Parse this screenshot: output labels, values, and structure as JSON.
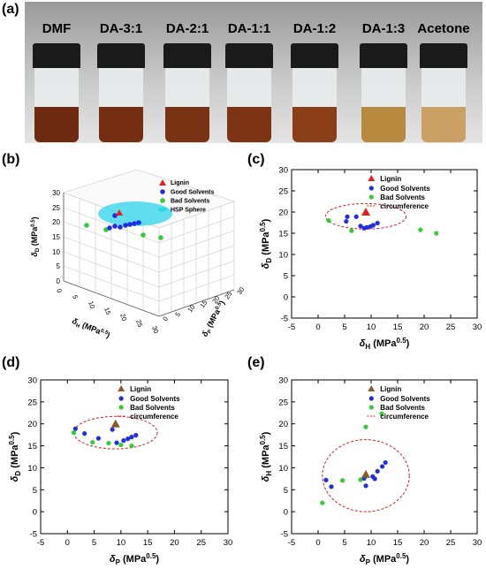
{
  "panel_labels": {
    "a": "(a)",
    "b": "(b)",
    "c": "(c)",
    "d": "(d)",
    "e": "(e)"
  },
  "photo": {
    "vials": [
      {
        "label": "DMF",
        "liquid_color": "#6e2a10"
      },
      {
        "label": "DA-3:1",
        "liquid_color": "#752e12"
      },
      {
        "label": "DA-2:1",
        "liquid_color": "#7a3214"
      },
      {
        "label": "DA-1:1",
        "liquid_color": "#7d3414"
      },
      {
        "label": "DA-1:2",
        "liquid_color": "#8a3f18"
      },
      {
        "label": "DA-1:3",
        "liquid_color": "#b88a40"
      },
      {
        "label": "Acetone",
        "liquid_color": "#caa064"
      }
    ]
  },
  "panel_b": {
    "z_label": "δD (MPa0.5)",
    "x_label": "δH (MPa0.5)",
    "y_label": "δP (MPa0.5)",
    "z_ticks": [
      "0",
      "5",
      "10",
      "15",
      "20",
      "25",
      "30"
    ],
    "x_ticks": [
      "0",
      "5",
      "10",
      "15",
      "20",
      "25",
      "30"
    ],
    "y_ticks": [
      "0",
      "5",
      "10",
      "15",
      "20",
      "25",
      "30"
    ],
    "legend": [
      "Lignin",
      "Good Solvents",
      "Bad Solvents",
      "HSP Sphere"
    ]
  },
  "colors": {
    "lignin_red": "#e32020",
    "lignin_brown": "#8b5a2b",
    "good": "#1f2ee0",
    "bad": "#33cc33",
    "circle": "#cc2222",
    "sphere": "#2ed4e8"
  },
  "chart_data": [
    {
      "id": "c",
      "type": "scatter",
      "xlabel": "δH (MPa0.5)",
      "ylabel": "δD (MPa0.5)",
      "xlim": [
        -5,
        30
      ],
      "ylim": [
        -5,
        30
      ],
      "xticks": [
        -5,
        0,
        5,
        10,
        15,
        20,
        25,
        30
      ],
      "yticks": [
        -5,
        0,
        5,
        10,
        15,
        20,
        25,
        30
      ],
      "legend": [
        "Lignin",
        "Good Solvents",
        "Bad Solvents",
        "circumference"
      ],
      "lignin": [
        [
          9.0,
          20.0
        ]
      ],
      "good": [
        [
          5.5,
          18.9
        ],
        [
          7.2,
          18.9
        ],
        [
          8.0,
          16.7
        ],
        [
          8.7,
          16.2
        ],
        [
          9.2,
          16.4
        ],
        [
          9.9,
          16.6
        ],
        [
          10.4,
          16.9
        ],
        [
          11.2,
          17.4
        ],
        [
          5.3,
          17.8
        ]
      ],
      "bad": [
        [
          2.0,
          18.0
        ],
        [
          6.3,
          15.6
        ],
        [
          19.3,
          15.8
        ],
        [
          22.3,
          15.0
        ]
      ],
      "circle": {
        "cx": 9.0,
        "cy": 19.0,
        "rx": 7.6,
        "ry": 3.0
      }
    },
    {
      "id": "d",
      "type": "scatter",
      "xlabel": "δP (MPa0.5)",
      "ylabel": "δD (MPa0.5)",
      "xlim": [
        -5,
        30
      ],
      "ylim": [
        -5,
        30
      ],
      "xticks": [
        -5,
        0,
        5,
        10,
        15,
        20,
        25,
        30
      ],
      "yticks": [
        -5,
        0,
        5,
        10,
        15,
        20,
        25,
        30
      ],
      "legend": [
        "Lignin",
        "Good Solvents",
        "Bad Solvents",
        "circumference"
      ],
      "lignin": [
        [
          9.0,
          20.0
        ]
      ],
      "good": [
        [
          1.5,
          18.9
        ],
        [
          3.2,
          17.8
        ],
        [
          5.8,
          16.7
        ],
        [
          9.2,
          15.7
        ],
        [
          10.5,
          16.2
        ],
        [
          11.3,
          16.6
        ],
        [
          12.0,
          17.0
        ],
        [
          12.8,
          17.4
        ],
        [
          8.4,
          18.7
        ]
      ],
      "bad": [
        [
          1.2,
          18.0
        ],
        [
          4.7,
          15.8
        ],
        [
          7.7,
          15.6
        ],
        [
          10.0,
          15.2
        ],
        [
          12.0,
          15.0
        ]
      ],
      "circle": {
        "cx": 9.0,
        "cy": 18.0,
        "rx": 7.8,
        "ry": 3.7
      }
    },
    {
      "id": "e",
      "type": "scatter",
      "xlabel": "δP (MPa0.5)",
      "ylabel": "δH (MPa0.5)",
      "xlim": [
        -5,
        30
      ],
      "ylim": [
        -5,
        30
      ],
      "xticks": [
        -5,
        0,
        5,
        10,
        15,
        20,
        25,
        30
      ],
      "yticks": [
        -5,
        0,
        5,
        10,
        15,
        20,
        25,
        30
      ],
      "legend": [
        "Lignin",
        "Good Solvents",
        "Bad Solvents",
        "circumference"
      ],
      "lignin": [
        [
          9.0,
          8.5
        ]
      ],
      "good": [
        [
          1.5,
          7.2
        ],
        [
          2.5,
          5.7
        ],
        [
          9.0,
          5.9
        ],
        [
          10.3,
          8.0
        ],
        [
          11.2,
          9.2
        ],
        [
          12.1,
          10.3
        ],
        [
          12.7,
          11.2
        ],
        [
          10.7,
          7.5
        ],
        [
          8.7,
          7.6
        ]
      ],
      "bad": [
        [
          0.8,
          2.0
        ],
        [
          4.6,
          7.1
        ],
        [
          9.0,
          19.3
        ],
        [
          12.0,
          22.3
        ],
        [
          8.0,
          7.3
        ]
      ],
      "circle": {
        "cx": 9.0,
        "cy": 8.2,
        "rx": 8.2,
        "ry": 8.2
      }
    }
  ]
}
